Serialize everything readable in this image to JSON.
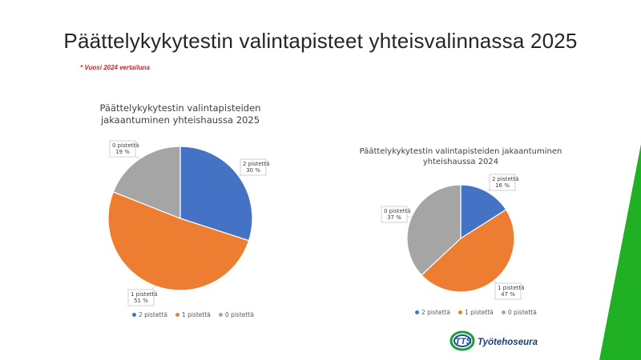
{
  "slide": {
    "title": "Päättelykykytestin valintapisteet yhteisvalinnassa 2025",
    "note": "* Vuosi 2024 vertailuna"
  },
  "colors": {
    "p2": "#4472c4",
    "p1": "#ed7d31",
    "p0": "#a5a5a5",
    "green": "#1fb024",
    "note": "#e02020"
  },
  "chart_data": [
    {
      "type": "pie",
      "title": "Päättelykykytestin valintapisteiden jakaantuminen yhteishaussa 2025",
      "title_lines": [
        "Päättelykykytestin valintapisteiden",
        "jakaantuminen yhteishaussa 2025"
      ],
      "categories": [
        "2 pistettä",
        "1 pistettä",
        "0 pistettä"
      ],
      "values": [
        30,
        51,
        19
      ],
      "value_labels": [
        "30 %",
        "51 %",
        "19 %"
      ],
      "legend": "bottom"
    },
    {
      "type": "pie",
      "title": "Päättelykykytestin valintapisteiden jakaantuminen yhteishaussa 2024",
      "title_lines": [
        "Päättelykykytestin valintapisteiden jakaantuminen",
        "yhteishaussa 2024"
      ],
      "categories": [
        "2 pistettä",
        "1 pistettä",
        "0 pistettä"
      ],
      "values": [
        16,
        47,
        37
      ],
      "value_labels": [
        "16 %",
        "47 %",
        "37 %"
      ],
      "legend": "bottom"
    }
  ],
  "logo": {
    "mark": "TTS",
    "text": "Työtehoseura"
  }
}
